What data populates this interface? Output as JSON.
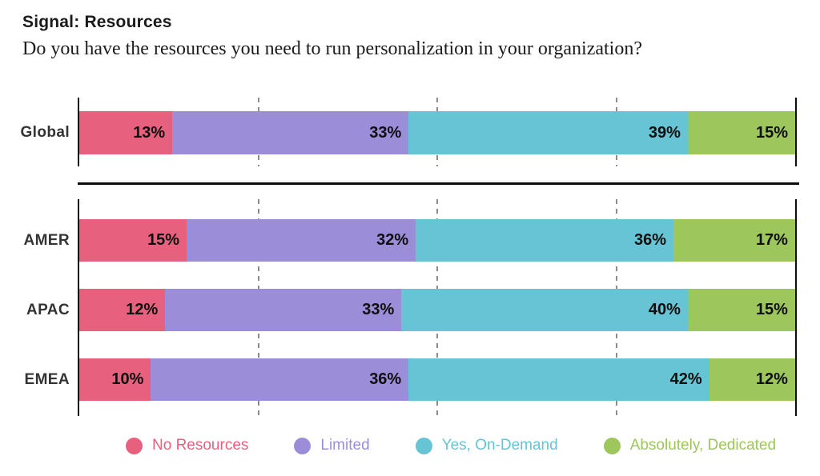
{
  "header": {
    "title": "Signal: Resources",
    "subtitle": "Do you have the resources you need to run personalization in your organization?"
  },
  "chart_data": {
    "type": "bar",
    "orientation": "horizontal",
    "stacked": true,
    "unit": "%",
    "xlim": [
      0,
      100
    ],
    "gridlines_percent": [
      25,
      50,
      75
    ],
    "grid": "dashed-vertical",
    "legend_position": "bottom",
    "series": [
      {
        "name": "No Resources",
        "color": "#E7617E"
      },
      {
        "name": "Limited",
        "color": "#9B8DD8"
      },
      {
        "name": "Yes, On-Demand",
        "color": "#66C4D4"
      },
      {
        "name": "Absolutely, Dedicated",
        "color": "#9DC75C"
      }
    ],
    "groups": [
      {
        "label": "Global",
        "section": "global",
        "values": [
          13,
          33,
          39,
          15
        ]
      },
      {
        "label": "AMER",
        "section": "regions",
        "values": [
          15,
          32,
          36,
          17
        ]
      },
      {
        "label": "APAC",
        "section": "regions",
        "values": [
          12,
          33,
          40,
          15
        ]
      },
      {
        "label": "EMEA",
        "section": "regions",
        "values": [
          10,
          36,
          42,
          12
        ]
      }
    ]
  }
}
